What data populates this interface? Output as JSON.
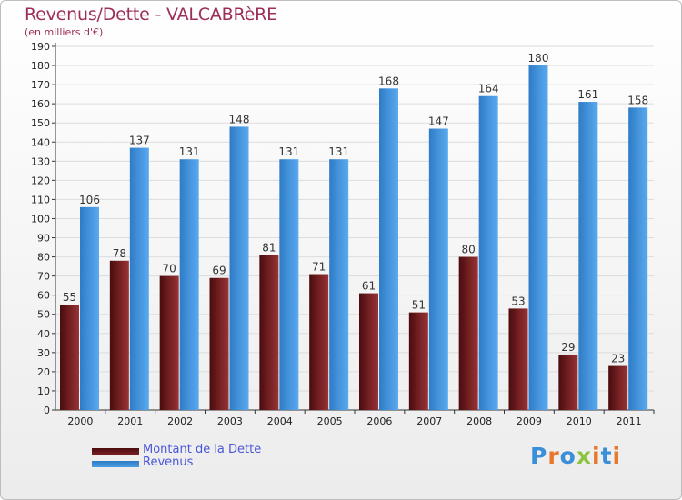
{
  "chart_data": {
    "type": "bar",
    "title": "Revenus/Dette - VALCABRèRE",
    "subtitle": "(en milliers d'€)",
    "categories": [
      "2000",
      "2001",
      "2002",
      "2003",
      "2004",
      "2005",
      "2006",
      "2007",
      "2008",
      "2009",
      "2010",
      "2011"
    ],
    "series": [
      {
        "name": "Montant de la Dette",
        "color": "#7a1f22",
        "values": [
          55,
          78,
          70,
          69,
          81,
          71,
          61,
          51,
          80,
          53,
          29,
          23
        ]
      },
      {
        "name": "Revenus",
        "color": "#4d9ee0",
        "values": [
          106,
          137,
          131,
          148,
          131,
          131,
          168,
          147,
          164,
          180,
          161,
          158
        ]
      }
    ],
    "ylim": [
      0,
      190
    ],
    "yticks": [
      0,
      10,
      20,
      30,
      40,
      50,
      60,
      70,
      80,
      90,
      100,
      110,
      120,
      130,
      140,
      150,
      160,
      170,
      180,
      190
    ],
    "grid": true,
    "legend_placement": "bottom-left"
  },
  "brand": {
    "text": "Proxiti",
    "letters": [
      "P",
      "r",
      "o",
      "x",
      "i",
      "t",
      "i"
    ],
    "letter_colors": [
      "#3a8fd8",
      "#e8772d",
      "#3a8fd8",
      "#8cc43d",
      "#e8772d",
      "#3a8fd8",
      "#e8772d"
    ]
  }
}
